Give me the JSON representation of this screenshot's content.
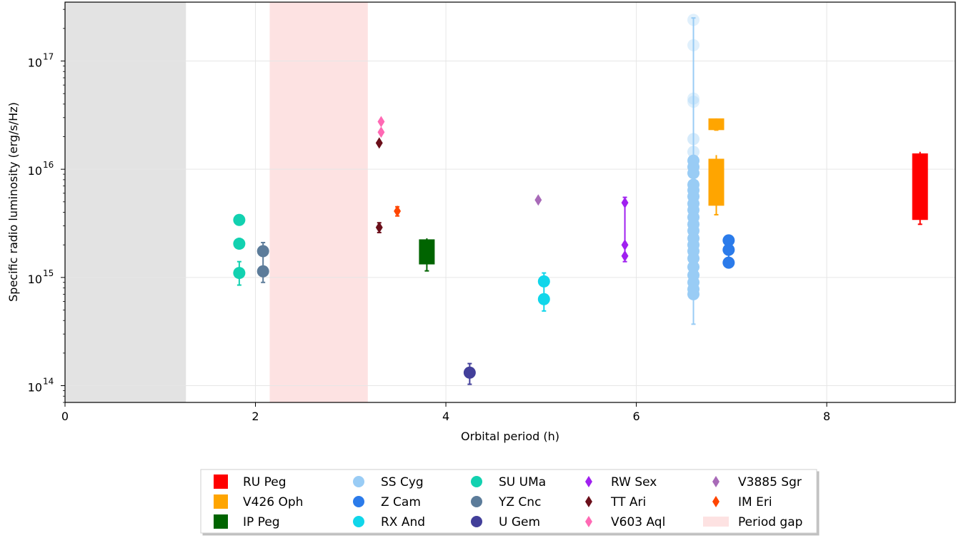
{
  "chart_data": {
    "type": "scatter",
    "title": "",
    "xlabel": "Orbital period (h)",
    "ylabel": "Specific radio luminosity (erg/s/Hz)",
    "xlim": [
      0,
      9.35
    ],
    "ylim": [
      70000000000000.0,
      3.5e+17
    ],
    "yscale": "log",
    "grid": true,
    "legend_position": "bottom-center",
    "x_ticks": [
      {
        "value": 0,
        "label": "0"
      },
      {
        "value": 2,
        "label": "2"
      },
      {
        "value": 4,
        "label": "4"
      },
      {
        "value": 6,
        "label": "6"
      },
      {
        "value": 8,
        "label": "8"
      }
    ],
    "y_ticks": [
      {
        "value": 100000000000000.0,
        "label": "10",
        "exp": "14"
      },
      {
        "value": 1000000000000000.0,
        "label": "10",
        "exp": "15"
      },
      {
        "value": 1e+16,
        "label": "10",
        "exp": "16"
      },
      {
        "value": 1e+17,
        "label": "10",
        "exp": "17"
      }
    ],
    "shaded_regions": [
      {
        "x0": 0,
        "x1": 1.27,
        "color": "#e3e3e3",
        "legend": false
      },
      {
        "x0": 2.15,
        "x1": 3.18,
        "color": "#fde2e2",
        "legend": true,
        "name": "Period gap"
      }
    ],
    "series": [
      {
        "name": "RU Peg",
        "marker": "box",
        "color": "#ff0000",
        "boxes": [
          {
            "x": 8.98,
            "ylow": 3400000000000000.0,
            "yhigh": 1.4e+16,
            "errlow": 3100000000000000.0,
            "errhigh": 1.45e+16
          }
        ]
      },
      {
        "name": "V426 Oph",
        "marker": "box",
        "color": "#ffa500",
        "boxes": [
          {
            "x": 6.84,
            "ylow": 4600000000000000.0,
            "yhigh": 1.25e+16,
            "errlow": 3800000000000000.0,
            "errhigh": 1.35e+16
          },
          {
            "x": 6.84,
            "ylow": 2.3e+16,
            "yhigh": 2.95e+16,
            "errlow": 2.3e+16,
            "errhigh": 2.95e+16
          }
        ]
      },
      {
        "name": "IP Peg",
        "marker": "box",
        "color": "#006400",
        "boxes": [
          {
            "x": 3.8,
            "ylow": 1320000000000000.0,
            "yhigh": 2250000000000000.0,
            "errlow": 1150000000000000.0,
            "errhigh": 2300000000000000.0
          }
        ]
      },
      {
        "name": "SS Cyg",
        "marker": "circle",
        "color": "#99ccf5",
        "points": [
          {
            "x": 6.6,
            "y": 2.4e+17,
            "alpha": 0.3
          },
          {
            "x": 6.6,
            "y": 1.4e+17,
            "alpha": 0.3
          },
          {
            "x": 6.6,
            "y": 4.5e+16,
            "alpha": 0.3
          },
          {
            "x": 6.6,
            "y": 4.2e+16,
            "alpha": 0.3
          },
          {
            "x": 6.6,
            "y": 1.9e+16,
            "alpha": 0.4
          },
          {
            "x": 6.6,
            "y": 1.45e+16,
            "alpha": 0.4
          },
          {
            "x": 6.6,
            "y": 1.2e+16
          },
          {
            "x": 6.6,
            "y": 1.05e+16
          },
          {
            "x": 6.6,
            "y": 9200000000000000.0
          },
          {
            "x": 6.6,
            "y": 7200000000000000.0
          },
          {
            "x": 6.6,
            "y": 6400000000000000.0
          },
          {
            "x": 6.6,
            "y": 5600000000000000.0
          },
          {
            "x": 6.6,
            "y": 4800000000000000.0
          },
          {
            "x": 6.6,
            "y": 4200000000000000.0
          },
          {
            "x": 6.6,
            "y": 3600000000000000.0
          },
          {
            "x": 6.6,
            "y": 3100000000000000.0
          },
          {
            "x": 6.6,
            "y": 2700000000000000.0
          },
          {
            "x": 6.6,
            "y": 2300000000000000.0
          },
          {
            "x": 6.6,
            "y": 2000000000000000.0
          },
          {
            "x": 6.6,
            "y": 1750000000000000.0
          },
          {
            "x": 6.6,
            "y": 1500000000000000.0
          },
          {
            "x": 6.6,
            "y": 1250000000000000.0
          },
          {
            "x": 6.6,
            "y": 1050000000000000.0
          },
          {
            "x": 6.6,
            "y": 900000000000000.0
          },
          {
            "x": 6.6,
            "y": 780000000000000.0
          },
          {
            "x": 6.6,
            "y": 700000000000000.0
          }
        ],
        "errorbar": {
          "x": 6.6,
          "ylow": 370000000000000.0,
          "yhigh": 2.5e+17
        }
      },
      {
        "name": "Z Cam",
        "marker": "circle",
        "color": "#2b7bea",
        "points": [
          {
            "x": 6.97,
            "y": 2200000000000000.0
          },
          {
            "x": 6.97,
            "y": 1800000000000000.0
          },
          {
            "x": 6.97,
            "y": 1370000000000000.0
          }
        ],
        "errorbar": {
          "x": 6.97,
          "ylow": 1300000000000000.0,
          "yhigh": 2400000000000000.0
        }
      },
      {
        "name": "SU UMa",
        "marker": "circle",
        "color": "#12d1b0",
        "points": [
          {
            "x": 1.83,
            "y": 3400000000000000.0
          },
          {
            "x": 1.83,
            "y": 2050000000000000.0
          },
          {
            "x": 1.83,
            "y": 1100000000000000.0
          }
        ],
        "errorbar": {
          "x": 1.83,
          "ylow": 850000000000000.0,
          "yhigh": 1400000000000000.0
        }
      },
      {
        "name": "YZ Cnc",
        "marker": "circle",
        "color": "#5c7c9a",
        "points": [
          {
            "x": 2.08,
            "y": 1750000000000000.0
          },
          {
            "x": 2.08,
            "y": 1140000000000000.0
          }
        ],
        "errorbar": {
          "x": 2.08,
          "ylow": 900000000000000.0,
          "yhigh": 2100000000000000.0
        }
      },
      {
        "name": "RX And",
        "marker": "circle",
        "color": "#10d6ea",
        "points": [
          {
            "x": 5.03,
            "y": 920000000000000.0
          },
          {
            "x": 5.03,
            "y": 630000000000000.0
          }
        ],
        "errorbar": {
          "x": 5.03,
          "ylow": 490000000000000.0,
          "yhigh": 1100000000000000.0
        }
      },
      {
        "name": "U Gem",
        "marker": "circle",
        "color": "#423f9a",
        "points": [
          {
            "x": 4.25,
            "y": 132000000000000.0
          }
        ],
        "errorbar": {
          "x": 4.25,
          "ylow": 103000000000000.0,
          "yhigh": 160000000000000.0
        }
      },
      {
        "name": "RW Sex",
        "marker": "diamond",
        "color": "#a020f0",
        "points": [
          {
            "x": 5.88,
            "y": 4900000000000000.0
          },
          {
            "x": 5.88,
            "y": 2000000000000000.0
          },
          {
            "x": 5.88,
            "y": 1580000000000000.0
          }
        ],
        "errorbar": {
          "x": 5.88,
          "ylow": 1400000000000000.0,
          "yhigh": 5500000000000000.0
        }
      },
      {
        "name": "TT Ari",
        "marker": "diamond",
        "color": "#6b0f1a",
        "points": [
          {
            "x": 3.3,
            "y": 1.75e+16
          },
          {
            "x": 3.3,
            "y": 2900000000000000.0
          }
        ],
        "errorbar": {
          "x": 3.3,
          "ylow": 2600000000000000.0,
          "yhigh": 3200000000000000.0
        }
      },
      {
        "name": "V603 Aql",
        "marker": "diamond",
        "color": "#ff69b4",
        "points": [
          {
            "x": 3.32,
            "y": 2.75e+16
          },
          {
            "x": 3.32,
            "y": 2.2e+16
          }
        ]
      },
      {
        "name": "V3885 Sgr",
        "marker": "diamond",
        "color": "#a86ab8",
        "points": [
          {
            "x": 4.97,
            "y": 5200000000000000.0
          }
        ]
      },
      {
        "name": "IM Eri",
        "marker": "diamond",
        "color": "#ff4500",
        "points": [
          {
            "x": 3.49,
            "y": 4100000000000000.0
          }
        ],
        "errorbar": {
          "x": 3.49,
          "ylow": 3700000000000000.0,
          "yhigh": 4500000000000000.0
        }
      }
    ],
    "legend_order": [
      [
        "RU Peg",
        "V426 Oph",
        "IP Peg"
      ],
      [
        "SS Cyg",
        "Z Cam",
        "RX And"
      ],
      [
        "SU UMa",
        "YZ Cnc",
        "U Gem"
      ],
      [
        "RW Sex",
        "TT Ari",
        "V603 Aql"
      ],
      [
        "V3885 Sgr",
        "IM Eri",
        "Period gap"
      ]
    ]
  }
}
